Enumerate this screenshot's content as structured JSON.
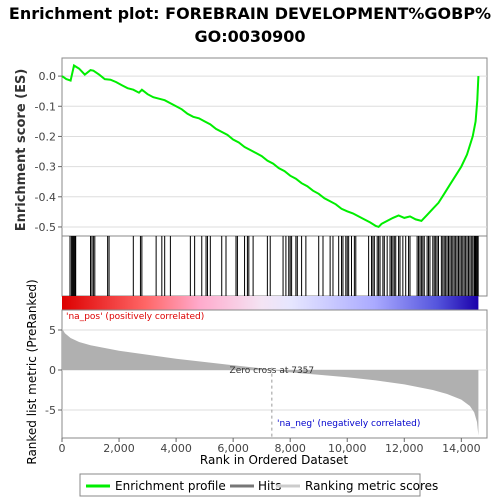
{
  "chart_data": [
    {
      "type": "line",
      "panel": "enrichment-profile",
      "title": "Enrichment plot: FOREBRAIN DEVELOPMENT%GOBP%GO:0030900",
      "title_lines": [
        "Enrichment plot: FOREBRAIN DEVELOPMENT%GOBP%",
        "GO:0030900"
      ],
      "ylabel": "Enrichment score (ES)",
      "ylim": [
        -0.53,
        0.06
      ],
      "xlim": [
        0,
        14900
      ],
      "yticks": [
        0.0,
        -0.1,
        -0.2,
        -0.3,
        -0.4,
        -0.5
      ],
      "ytick_labels": [
        "0.0",
        "-0.1",
        "-0.2",
        "-0.3",
        "-0.4",
        "-0.5"
      ],
      "grid": true,
      "line_color": "#00ee00",
      "series": [
        {
          "name": "Enrichment profile",
          "x": [
            0,
            150,
            300,
            420,
            600,
            800,
            1000,
            1100,
            1300,
            1500,
            1700,
            1900,
            2100,
            2300,
            2500,
            2700,
            2800,
            3000,
            3200,
            3400,
            3600,
            3800,
            4000,
            4200,
            4400,
            4600,
            4800,
            5000,
            5200,
            5400,
            5600,
            5800,
            6000,
            6200,
            6400,
            6600,
            6800,
            7000,
            7200,
            7400,
            7600,
            7800,
            8000,
            8200,
            8400,
            8600,
            8800,
            9000,
            9200,
            9400,
            9600,
            9800,
            10000,
            10200,
            10400,
            10600,
            10800,
            11000,
            11100,
            11200,
            11400,
            11600,
            11800,
            12000,
            12200,
            12400,
            12600,
            12800,
            13000,
            13200,
            13400,
            13600,
            13800,
            14000,
            14200,
            14400,
            14500,
            14560,
            14600
          ],
          "values": [
            0.0,
            -0.01,
            -0.015,
            0.035,
            0.025,
            0.005,
            0.02,
            0.018,
            0.005,
            -0.01,
            -0.012,
            -0.02,
            -0.03,
            -0.04,
            -0.045,
            -0.055,
            -0.045,
            -0.06,
            -0.07,
            -0.075,
            -0.08,
            -0.09,
            -0.1,
            -0.11,
            -0.125,
            -0.135,
            -0.14,
            -0.15,
            -0.16,
            -0.175,
            -0.185,
            -0.195,
            -0.21,
            -0.22,
            -0.235,
            -0.245,
            -0.255,
            -0.265,
            -0.28,
            -0.29,
            -0.305,
            -0.315,
            -0.33,
            -0.34,
            -0.355,
            -0.365,
            -0.38,
            -0.39,
            -0.405,
            -0.415,
            -0.425,
            -0.44,
            -0.448,
            -0.455,
            -0.465,
            -0.475,
            -0.485,
            -0.497,
            -0.5,
            -0.49,
            -0.48,
            -0.47,
            -0.462,
            -0.47,
            -0.465,
            -0.475,
            -0.48,
            -0.46,
            -0.44,
            -0.42,
            -0.39,
            -0.36,
            -0.33,
            -0.3,
            -0.26,
            -0.2,
            -0.15,
            -0.08,
            0.0
          ]
        }
      ]
    },
    {
      "type": "scatter",
      "panel": "hits",
      "legend": "Hits",
      "hit_positions": [
        280,
        330,
        370,
        400,
        430,
        460,
        480,
        1000,
        1050,
        1100,
        1150,
        1600,
        1650,
        2500,
        2750,
        2800,
        3300,
        3500,
        3600,
        3800,
        4500,
        4650,
        4900,
        5050,
        5100,
        5200,
        5600,
        5750,
        6100,
        6150,
        6400,
        6500,
        6550,
        6700,
        7200,
        7300,
        7750,
        7850,
        7950,
        8000,
        8050,
        8200,
        8250,
        8400,
        8550,
        9000,
        9150,
        9400,
        9500,
        9700,
        9800,
        9850,
        9950,
        10000,
        10050,
        10150,
        10250,
        10300,
        10750,
        10850,
        10900,
        10950,
        11050,
        11100,
        11150,
        11250,
        11300,
        11400,
        11500,
        11550,
        11600,
        11650,
        11700,
        11800,
        11850,
        11950,
        12050,
        12150,
        12200,
        12450,
        12500,
        12550,
        12600,
        12650,
        12700,
        12800,
        12850,
        12900,
        13000,
        13050,
        13100,
        13150,
        13200,
        13300,
        13350,
        13400,
        13450,
        13500,
        13550,
        13600,
        13650,
        13700,
        13750,
        13800,
        13850,
        13900,
        13950,
        14000,
        14050,
        14100,
        14150,
        14200,
        14250,
        14300,
        14350,
        14400,
        14450,
        14480,
        14510,
        14540,
        14570,
        14590
      ]
    },
    {
      "type": "area",
      "panel": "ranked-list-metric",
      "ylabel": "Ranked list metric (PreRanked)",
      "xlabel": "Rank in Ordered Dataset",
      "ylim": [
        -8.5,
        7.5
      ],
      "xlim": [
        0,
        14900
      ],
      "yticks": [
        5,
        0,
        -5
      ],
      "ytick_labels": [
        "5",
        "0",
        "-5"
      ],
      "xticks": [
        0,
        2000,
        4000,
        6000,
        8000,
        10000,
        12000,
        14000
      ],
      "xtick_labels": [
        "0",
        "2,000",
        "4,000",
        "6,000",
        "8,000",
        "10,000",
        "12,000",
        "14,000"
      ],
      "x": [
        0,
        100,
        300,
        600,
        1000,
        2000,
        3000,
        4000,
        5000,
        6000,
        7000,
        7357,
        8000,
        9000,
        10000,
        11000,
        12000,
        13000,
        13500,
        14000,
        14300,
        14450,
        14550,
        14600
      ],
      "values": [
        5.2,
        4.6,
        4.0,
        3.5,
        3.1,
        2.4,
        1.9,
        1.4,
        1.0,
        0.6,
        0.2,
        0.0,
        -0.3,
        -0.6,
        -0.9,
        -1.3,
        -1.8,
        -2.5,
        -3.0,
        -3.7,
        -4.5,
        -5.3,
        -6.5,
        -8.2
      ],
      "fill_color": "#b0b0b0",
      "zero_cross_rank": 7357,
      "annotations": {
        "zero_cross": "Zero cross at 7357",
        "na_pos": "'na_pos' (positively correlated)",
        "na_neg": "'na_neg' (negatively correlated)"
      },
      "annotation_colors": {
        "na_pos": "#dd0000",
        "na_neg": "#0000cc"
      }
    }
  ],
  "legend": {
    "items": [
      {
        "label": "Enrichment profile",
        "color": "#00ee00"
      },
      {
        "label": "Hits",
        "color": "#777777"
      },
      {
        "label": "Ranking metric scores",
        "color": "#cccccc"
      }
    ]
  },
  "colors": {
    "enrichment_line": "#00ee00",
    "hit_line": "#000000",
    "grid": "#dddddd",
    "metric_fill": "#b0b0b0",
    "heat_pos": "#ff0000",
    "heat_neg": "#0000cc"
  }
}
